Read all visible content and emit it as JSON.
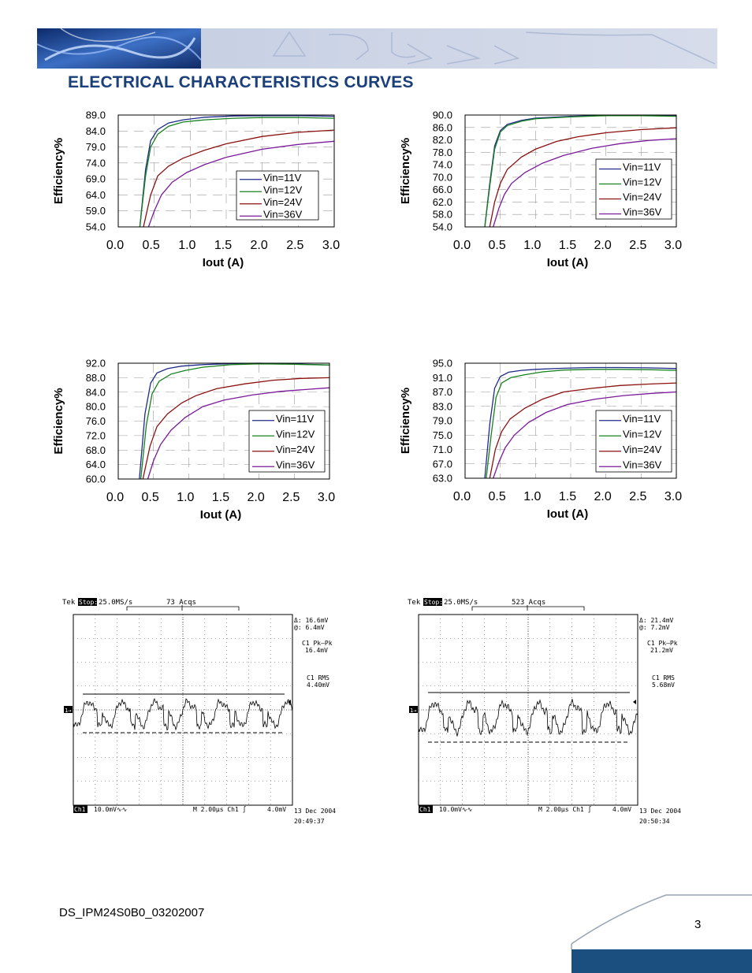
{
  "header": {
    "section_title": "ELECTRICAL CHARACTERISTICS CURVES"
  },
  "colors": {
    "title": "#1a3f7a",
    "banner": "#c9d3e6",
    "vin11": "#1f2a8c",
    "vin12": "#17801f",
    "vin24": "#8c1010",
    "vin36": "#7a1a9a"
  },
  "chart_data": [
    {
      "type": "line",
      "ylabel": "Efficiency%",
      "xlabel": "Iout (A)",
      "xlim": [
        0,
        3
      ],
      "ylim": [
        54,
        89
      ],
      "yticks": [
        "89.0",
        "84.0",
        "79.0",
        "74.0",
        "69.0",
        "64.0",
        "59.0",
        "54.0"
      ],
      "xticks": [
        "0.0",
        "0.5",
        "1.0",
        "1.5",
        "2.0",
        "2.5",
        "3.0"
      ],
      "legend_position": "lower-right",
      "series": [
        {
          "name": "Vin=11V",
          "x": [
            0.3,
            0.38,
            0.45,
            0.55,
            0.7,
            0.9,
            1.2,
            1.6,
            2.0,
            2.5,
            3.0
          ],
          "y": [
            54,
            72,
            81,
            84.5,
            86.5,
            87.5,
            88.3,
            88.7,
            88.8,
            88.8,
            88.6
          ]
        },
        {
          "name": "Vin=12V",
          "x": [
            0.3,
            0.38,
            0.45,
            0.55,
            0.7,
            0.9,
            1.2,
            1.6,
            2.0,
            2.5,
            3.0
          ],
          "y": [
            54,
            70,
            79,
            83,
            85.5,
            86.8,
            87.5,
            88,
            88.2,
            88.2,
            88
          ]
        },
        {
          "name": "Vin=24V",
          "x": [
            0.35,
            0.45,
            0.55,
            0.7,
            0.9,
            1.2,
            1.5,
            2.0,
            2.5,
            3.0
          ],
          "y": [
            54,
            64,
            70,
            73,
            75.5,
            78,
            80,
            82.3,
            83.6,
            84.3
          ]
        },
        {
          "name": "Vin=36V",
          "x": [
            0.42,
            0.5,
            0.6,
            0.75,
            0.95,
            1.2,
            1.5,
            2.0,
            2.5,
            3.0
          ],
          "y": [
            54,
            59,
            64,
            68,
            71,
            73.5,
            75.8,
            78.3,
            79.8,
            80.8
          ]
        }
      ]
    },
    {
      "type": "line",
      "ylabel": "Efficiency%",
      "xlabel": "Iout (A)",
      "xlim": [
        0,
        3
      ],
      "ylim": [
        54,
        90
      ],
      "yticks": [
        "90.0",
        "86.0",
        "82.0",
        "78.0",
        "74.0",
        "70.0",
        "66.0",
        "62.0",
        "58.0",
        "54.0"
      ],
      "xticks": [
        "0.0",
        "0.5",
        "1.0",
        "1.5",
        "2.0",
        "2.5",
        "3.0"
      ],
      "legend_position": "lower-right",
      "series": [
        {
          "name": "Vin=11V",
          "x": [
            0.28,
            0.35,
            0.42,
            0.5,
            0.6,
            0.8,
            1.0,
            1.5,
            2.0,
            2.5,
            3.0
          ],
          "y": [
            54,
            68,
            80,
            85,
            87,
            88.3,
            89,
            89.6,
            89.9,
            89.9,
            89.7
          ]
        },
        {
          "name": "Vin=12V",
          "x": [
            0.28,
            0.35,
            0.42,
            0.5,
            0.6,
            0.8,
            1.0,
            1.5,
            2.0,
            2.5,
            3.0
          ],
          "y": [
            54,
            67,
            79,
            84.5,
            86.6,
            88,
            88.8,
            89.4,
            89.8,
            89.8,
            89.6
          ]
        },
        {
          "name": "Vin=24V",
          "x": [
            0.35,
            0.42,
            0.5,
            0.6,
            0.8,
            1.0,
            1.3,
            1.6,
            2.0,
            2.5,
            3.0
          ],
          "y": [
            54,
            62,
            68,
            72.5,
            76.5,
            79,
            81.5,
            83,
            84.3,
            85.3,
            85.9
          ]
        },
        {
          "name": "Vin=36V",
          "x": [
            0.4,
            0.48,
            0.56,
            0.66,
            0.85,
            1.1,
            1.4,
            1.8,
            2.2,
            2.6,
            3.0
          ],
          "y": [
            54,
            60,
            64.5,
            68,
            71.5,
            74.5,
            77,
            79.3,
            80.8,
            81.8,
            82.4
          ]
        }
      ]
    },
    {
      "type": "line",
      "ylabel": "Efficiency%",
      "xlabel": "Iout (A)",
      "xlim": [
        0,
        3
      ],
      "ylim": [
        60,
        92
      ],
      "yticks": [
        "92.0",
        "88.0",
        "84.0",
        "80.0",
        "76.0",
        "72.0",
        "68.0",
        "64.0",
        "60.0"
      ],
      "xticks": [
        "0.0",
        "0.5",
        "1.0",
        "1.5",
        "2.0",
        "2.5",
        "3.0"
      ],
      "legend_position": "lower-right",
      "series": [
        {
          "name": "Vin=11V",
          "x": [
            0.3,
            0.38,
            0.46,
            0.55,
            0.7,
            0.9,
            1.2,
            1.6,
            2.0,
            2.5,
            3.0
          ],
          "y": [
            60,
            78,
            86.5,
            89.3,
            90.5,
            91.2,
            91.6,
            91.9,
            92,
            91.8,
            91.5
          ]
        },
        {
          "name": "Vin=12V",
          "x": [
            0.32,
            0.4,
            0.48,
            0.58,
            0.75,
            0.95,
            1.2,
            1.6,
            2.0,
            2.5,
            3.0
          ],
          "y": [
            60,
            75,
            83.5,
            87,
            89,
            90,
            90.9,
            91.6,
            91.8,
            91.7,
            91.5
          ]
        },
        {
          "name": "Vin=24V",
          "x": [
            0.35,
            0.45,
            0.55,
            0.7,
            0.9,
            1.1,
            1.4,
            1.8,
            2.2,
            2.6,
            3.0
          ],
          "y": [
            60,
            69,
            74.5,
            78,
            81,
            83,
            85,
            86.3,
            87.3,
            87.8,
            88
          ]
        },
        {
          "name": "Vin=36V",
          "x": [
            0.42,
            0.5,
            0.6,
            0.75,
            0.95,
            1.2,
            1.5,
            1.9,
            2.3,
            2.7,
            3.0
          ],
          "y": [
            60,
            65,
            69.5,
            73.5,
            77,
            80,
            81.8,
            83.2,
            84.2,
            84.8,
            85.2
          ]
        }
      ]
    },
    {
      "type": "line",
      "ylabel": "Efficiency%",
      "xlabel": "Iout (A)",
      "xlim": [
        0,
        3
      ],
      "ylim": [
        63,
        95
      ],
      "yticks": [
        "95.0",
        "91.0",
        "87.0",
        "83.0",
        "79.0",
        "75.0",
        "71.0",
        "67.0",
        "63.0"
      ],
      "xticks": [
        "0.0",
        "0.5",
        "1.0",
        "1.5",
        "2.0",
        "2.5",
        "3.0"
      ],
      "legend_position": "lower-right",
      "series": [
        {
          "name": "Vin=11V",
          "x": [
            0.28,
            0.35,
            0.42,
            0.5,
            0.62,
            0.8,
            1.0,
            1.4,
            1.8,
            2.2,
            2.6,
            3.0
          ],
          "y": [
            63,
            78,
            88,
            91.3,
            92.5,
            93,
            93.3,
            93.6,
            93.8,
            93.8,
            93.7,
            93.5
          ]
        },
        {
          "name": "Vin=12V",
          "x": [
            0.3,
            0.37,
            0.44,
            0.52,
            0.65,
            0.85,
            1.1,
            1.4,
            1.8,
            2.2,
            2.6,
            3.0
          ],
          "y": [
            63,
            75,
            85.5,
            89.5,
            91,
            91.8,
            92.6,
            93.1,
            93.3,
            93.3,
            93.2,
            93
          ]
        },
        {
          "name": "Vin=24V",
          "x": [
            0.35,
            0.43,
            0.52,
            0.64,
            0.85,
            1.1,
            1.4,
            1.8,
            2.2,
            2.6,
            3.0
          ],
          "y": [
            63,
            71,
            76,
            79.5,
            82.5,
            85,
            87,
            88,
            88.8,
            89.2,
            89.5
          ]
        },
        {
          "name": "Vin=36V",
          "x": [
            0.4,
            0.48,
            0.57,
            0.7,
            0.9,
            1.15,
            1.45,
            1.85,
            2.25,
            2.65,
            3.0
          ],
          "y": [
            63,
            67.5,
            71.5,
            75,
            78.5,
            81.3,
            83.5,
            85,
            86,
            86.6,
            87
          ]
        }
      ]
    }
  ],
  "scopes": [
    {
      "brand": "Tek",
      "stop": "Stop:",
      "rate": "25.0MS/s",
      "acqs": "73 Acqs",
      "delta": "Δ: 16.6mV",
      "at": "@: 6.4mV",
      "pkpk_label": "C1 Pk–Pk",
      "pkpk_value": "16.4mV",
      "rms_label": "C1 RMS",
      "rms_value": "4.40mV",
      "ch_tag": "Ch1",
      "volts_div": "10.0mV∿∿",
      "timebase": "M 2.00μs  Ch1  ∫",
      "trigger": "4.0mV",
      "date": "13 Dec 2004",
      "time": "20:49:37",
      "marker": "1→"
    },
    {
      "brand": "Tek",
      "stop": "Stop:",
      "rate": "25.0MS/s",
      "acqs": "523 Acqs",
      "delta": "Δ: 21.4mV",
      "at": "@: 7.2mV",
      "pkpk_label": "C1 Pk–Pk",
      "pkpk_value": "21.2mV",
      "rms_label": "C1 RMS",
      "rms_value": "5.68mV",
      "ch_tag": "Ch1",
      "volts_div": "10.0mV∿∿",
      "timebase": "M 2.00μs  Ch1  ∫",
      "trigger": "4.0mV",
      "date": "13 Dec 2004",
      "time": "20:50:34",
      "marker": "1→"
    }
  ],
  "footer": {
    "doc_id": "DS_IPM24S0B0_03202007",
    "page_number": "3"
  }
}
